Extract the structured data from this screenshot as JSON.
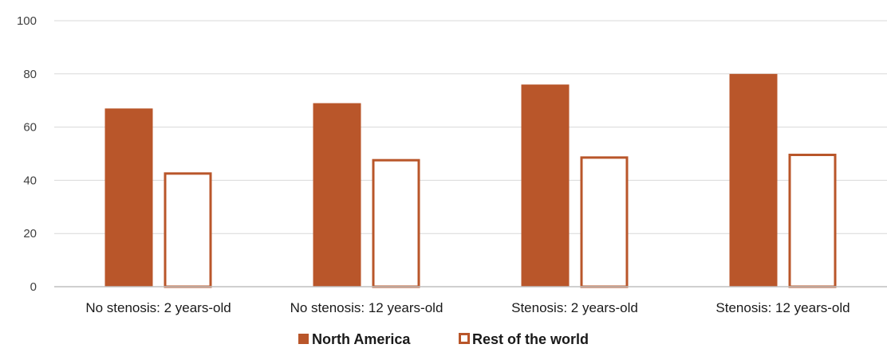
{
  "chart_data": {
    "type": "bar",
    "title": "",
    "xlabel": "",
    "ylabel": "",
    "ylim": [
      0,
      100
    ],
    "yticks": [
      0,
      20,
      40,
      60,
      80,
      100
    ],
    "grid": true,
    "legend_position": "bottom",
    "categories": [
      "No stenosis: 2 years-old",
      "No stenosis: 12 years-old",
      "Stenosis: 2 years-old",
      "Stenosis: 12 years-old"
    ],
    "series": [
      {
        "name": "North America",
        "values": [
          67,
          69,
          76,
          80
        ],
        "color": "#b9562a",
        "style": "filled"
      },
      {
        "name": "Rest of the world",
        "values": [
          43,
          48,
          49,
          50
        ],
        "color": "#b9562a",
        "style": "outline"
      }
    ]
  }
}
